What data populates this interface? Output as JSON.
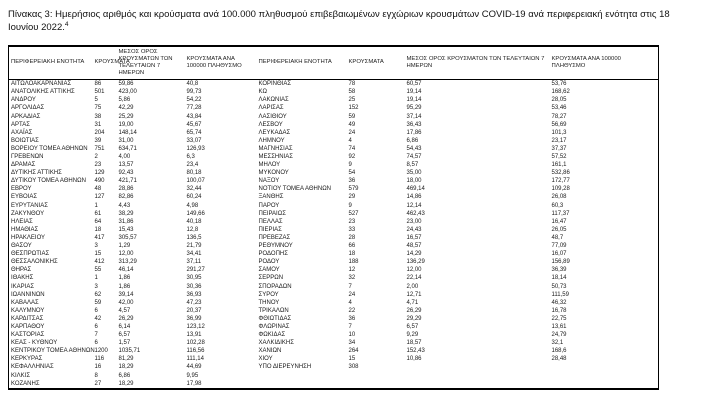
{
  "page": {
    "title": "Πίνακας 3:  Ημερήσιος αριθμός και κρούσματα ανά 100.000 πληθυσμού επιβεβαιωμένων εγχώριων κρουσμάτων COVID-19 ανά περιφερειακή ενότητα στις 18 Ιουνίου 2022.",
    "footnote_marker": "4"
  },
  "table": {
    "headers": {
      "region": "ΠΕΡΙΦΕΡΕΙΑΚΗ ΕΝΟΤΗΤΑ",
      "cases": "ΚΡΟΥΣΜΑΤΑ",
      "avg7": "ΜΕΣΟΣ ΟΡΟΣ ΚΡΟΥΣΜΑΤΩΝ ΤΩΝ ΤΕΛΕΥΤΑΙΩΝ 7 ΗΜΕΡΩΝ",
      "per100k": "ΚΡΟΥΣΜΑΤΑ ΑΝΑ 100000 ΠΛΗΘΥΣΜΟ"
    },
    "left_rows": [
      {
        "region": "ΑΙΤΩΛΟΑΚΑΡΝΑΝΙΑΣ",
        "cases": "86",
        "avg7": "59,86",
        "per100k": "40,8"
      },
      {
        "region": "ΑΝΑΤΟΛΙΚΗΣ ΑΤΤΙΚΗΣ",
        "cases": "501",
        "avg7": "423,00",
        "per100k": "99,73"
      },
      {
        "region": "ΑΝΔΡΟΥ",
        "cases": "5",
        "avg7": "5,86",
        "per100k": "54,22"
      },
      {
        "region": "ΑΡΓΟΛΙΔΑΣ",
        "cases": "75",
        "avg7": "42,29",
        "per100k": "77,28"
      },
      {
        "region": "ΑΡΚΑΔΙΑΣ",
        "cases": "38",
        "avg7": "25,29",
        "per100k": "43,84"
      },
      {
        "region": "ΑΡΤΑΣ",
        "cases": "31",
        "avg7": "19,00",
        "per100k": "45,67"
      },
      {
        "region": "ΑΧΑΪΑΣ",
        "cases": "204",
        "avg7": "148,14",
        "per100k": "65,74"
      },
      {
        "region": "ΒΟΙΩΤΙΑΣ",
        "cases": "39",
        "avg7": "31,00",
        "per100k": "33,07"
      },
      {
        "region": "ΒΟΡΕΙΟΥ ΤΟΜΕΑ ΑΘΗΝΩΝ",
        "cases": "751",
        "avg7": "634,71",
        "per100k": "126,93"
      },
      {
        "region": "ΓΡΕΒΕΝΩΝ",
        "cases": "2",
        "avg7": "4,00",
        "per100k": "6,3"
      },
      {
        "region": "ΔΡΑΜΑΣ",
        "cases": "23",
        "avg7": "13,57",
        "per100k": "23,4"
      },
      {
        "region": "ΔΥΤΙΚΗΣ ΑΤΤΙΚΗΣ",
        "cases": "129",
        "avg7": "92,43",
        "per100k": "80,18"
      },
      {
        "region": "ΔΥΤΙΚΟΥ ΤΟΜΕΑ ΑΘΗΝΩΝ",
        "cases": "490",
        "avg7": "421,71",
        "per100k": "100,07"
      },
      {
        "region": "ΕΒΡΟΥ",
        "cases": "48",
        "avg7": "28,86",
        "per100k": "32,44"
      },
      {
        "region": "ΕΥΒΟΙΑΣ",
        "cases": "127",
        "avg7": "82,86",
        "per100k": "60,24"
      },
      {
        "region": "ΕΥΡΥΤΑΝΙΑΣ",
        "cases": "1",
        "avg7": "4,43",
        "per100k": "4,98"
      },
      {
        "region": "ΖΑΚΥΝΘΟΥ",
        "cases": "61",
        "avg7": "38,29",
        "per100k": "149,66"
      },
      {
        "region": "ΗΛΕΙΑΣ",
        "cases": "64",
        "avg7": "31,86",
        "per100k": "40,18"
      },
      {
        "region": "ΗΜΑΘΙΑΣ",
        "cases": "18",
        "avg7": "15,43",
        "per100k": "12,8"
      },
      {
        "region": "ΗΡΑΚΛΕΙΟΥ",
        "cases": "417",
        "avg7": "305,57",
        "per100k": "136,5"
      },
      {
        "region": "ΘΑΣΟΥ",
        "cases": "3",
        "avg7": "1,29",
        "per100k": "21,79"
      },
      {
        "region": "ΘΕΣΠΡΩΤΙΑΣ",
        "cases": "15",
        "avg7": "12,00",
        "per100k": "34,41"
      },
      {
        "region": "ΘΕΣΣΑΛΟΝΙΚΗΣ",
        "cases": "412",
        "avg7": "313,29",
        "per100k": "37,11"
      },
      {
        "region": "ΘΗΡΑΣ",
        "cases": "55",
        "avg7": "46,14",
        "per100k": "291,27"
      },
      {
        "region": "ΙΘΑΚΗΣ",
        "cases": "1",
        "avg7": "1,86",
        "per100k": "30,95"
      },
      {
        "region": "ΙΚΑΡΙΑΣ",
        "cases": "3",
        "avg7": "1,86",
        "per100k": "30,36"
      },
      {
        "region": "ΙΩΑΝΝΙΝΩΝ",
        "cases": "62",
        "avg7": "39,14",
        "per100k": "36,93"
      },
      {
        "region": "ΚΑΒΑΛΑΣ",
        "cases": "59",
        "avg7": "42,00",
        "per100k": "47,23"
      },
      {
        "region": "ΚΑΛΥΜΝΟΥ",
        "cases": "6",
        "avg7": "4,57",
        "per100k": "20,37"
      },
      {
        "region": "ΚΑΡΔΙΤΣΑΣ",
        "cases": "42",
        "avg7": "26,29",
        "per100k": "36,99"
      },
      {
        "region": "ΚΑΡΠΑΘΟΥ",
        "cases": "6",
        "avg7": "6,14",
        "per100k": "123,12"
      },
      {
        "region": "ΚΑΣΤΟΡΙΑΣ",
        "cases": "7",
        "avg7": "6,57",
        "per100k": "13,91"
      },
      {
        "region": "ΚΕΑΣ - ΚΥΘΝΟΥ",
        "cases": "6",
        "avg7": "1,57",
        "per100k": "102,28"
      },
      {
        "region": "ΚΕΝΤΡΙΚΟΥ ΤΟΜΕΑ ΑΘΗΝΩΝ",
        "cases": "1200",
        "avg7": "1035,71",
        "per100k": "116,56"
      },
      {
        "region": "ΚΕΡΚΥΡΑΣ",
        "cases": "116",
        "avg7": "81,29",
        "per100k": "111,14"
      },
      {
        "region": "ΚΕΦΑΛΛΗΝΙΑΣ",
        "cases": "16",
        "avg7": "18,29",
        "per100k": "44,69"
      },
      {
        "region": "ΚΙΛΚΙΣ",
        "cases": "8",
        "avg7": "6,86",
        "per100k": "9,95"
      },
      {
        "region": "ΚΟΖΑΝΗΣ",
        "cases": "27",
        "avg7": "18,29",
        "per100k": "17,98"
      }
    ],
    "right_rows": [
      {
        "region": "ΚΟΡΙΝΘΙΑΣ",
        "cases": "78",
        "avg7": "60,57",
        "per100k": "53,76"
      },
      {
        "region": "ΚΩ",
        "cases": "58",
        "avg7": "19,14",
        "per100k": "168,62"
      },
      {
        "region": "ΛΑΚΩΝΙΑΣ",
        "cases": "25",
        "avg7": "19,14",
        "per100k": "28,05"
      },
      {
        "region": "ΛΑΡΙΣΑΣ",
        "cases": "152",
        "avg7": "95,29",
        "per100k": "53,46"
      },
      {
        "region": "ΛΑΣΙΘΙΟΥ",
        "cases": "59",
        "avg7": "37,14",
        "per100k": "78,27"
      },
      {
        "region": "ΛΕΣΒΟΥ",
        "cases": "49",
        "avg7": "36,43",
        "per100k": "56,69"
      },
      {
        "region": "ΛΕΥΚΑΔΑΣ",
        "cases": "24",
        "avg7": "17,86",
        "per100k": "101,3"
      },
      {
        "region": "ΛΗΜΝΟΥ",
        "cases": "4",
        "avg7": "6,86",
        "per100k": "23,17"
      },
      {
        "region": "ΜΑΓΝΗΣΙΑΣ",
        "cases": "74",
        "avg7": "54,43",
        "per100k": "37,37"
      },
      {
        "region": "ΜΕΣΣΗΝΙΑΣ",
        "cases": "92",
        "avg7": "74,57",
        "per100k": "57,52"
      },
      {
        "region": "ΜΗΛΟΥ",
        "cases": "9",
        "avg7": "8,57",
        "per100k": "161,1"
      },
      {
        "region": "ΜΥΚΟΝΟΥ",
        "cases": "54",
        "avg7": "35,00",
        "per100k": "532,86"
      },
      {
        "region": "ΝΑΞΟΥ",
        "cases": "36",
        "avg7": "18,00",
        "per100k": "172,77"
      },
      {
        "region": "ΝΟΤΙΟΥ ΤΟΜΕΑ ΑΘΗΝΩΝ",
        "cases": "579",
        "avg7": "469,14",
        "per100k": "109,28"
      },
      {
        "region": "ΞΑΝΘΗΣ",
        "cases": "29",
        "avg7": "14,86",
        "per100k": "26,08"
      },
      {
        "region": "ΠΑΡΟΥ",
        "cases": "9",
        "avg7": "12,14",
        "per100k": "60,3"
      },
      {
        "region": "ΠΕΙΡΑΙΩΣ",
        "cases": "527",
        "avg7": "462,43",
        "per100k": "117,37"
      },
      {
        "region": "ΠΕΛΛΑΣ",
        "cases": "23",
        "avg7": "23,00",
        "per100k": "16,47"
      },
      {
        "region": "ΠΙΕΡΙΑΣ",
        "cases": "33",
        "avg7": "24,43",
        "per100k": "26,05"
      },
      {
        "region": "ΠΡΕΒΕΖΑΣ",
        "cases": "28",
        "avg7": "16,57",
        "per100k": "48,7"
      },
      {
        "region": "ΡΕΘΥΜΝΟΥ",
        "cases": "66",
        "avg7": "48,57",
        "per100k": "77,09"
      },
      {
        "region": "ΡΟΔΟΠΗΣ",
        "cases": "18",
        "avg7": "14,29",
        "per100k": "16,07"
      },
      {
        "region": "ΡΟΔΟΥ",
        "cases": "188",
        "avg7": "136,29",
        "per100k": "156,89"
      },
      {
        "region": "ΣΑΜΟΥ",
        "cases": "12",
        "avg7": "12,00",
        "per100k": "36,39"
      },
      {
        "region": "ΣΕΡΡΩΝ",
        "cases": "32",
        "avg7": "22,14",
        "per100k": "18,14"
      },
      {
        "region": "ΣΠΟΡΑΔΩΝ",
        "cases": "7",
        "avg7": "2,00",
        "per100k": "50,73"
      },
      {
        "region": "ΣΥΡΟΥ",
        "cases": "24",
        "avg7": "12,71",
        "per100k": "111,59"
      },
      {
        "region": "ΤΗΝΟΥ",
        "cases": "4",
        "avg7": "4,71",
        "per100k": "46,32"
      },
      {
        "region": "ΤΡΙΚΑΛΩΝ",
        "cases": "22",
        "avg7": "26,29",
        "per100k": "16,78"
      },
      {
        "region": "ΦΘΙΩΤΙΔΑΣ",
        "cases": "36",
        "avg7": "29,29",
        "per100k": "22,75"
      },
      {
        "region": "ΦΛΩΡΙΝΑΣ",
        "cases": "7",
        "avg7": "6,57",
        "per100k": "13,61"
      },
      {
        "region": "ΦΩΚΙΔΑΣ",
        "cases": "10",
        "avg7": "9,29",
        "per100k": "24,79"
      },
      {
        "region": "ΧΑΛΚΙΔΙΚΗΣ",
        "cases": "34",
        "avg7": "18,57",
        "per100k": "32,1"
      },
      {
        "region": "ΧΑΝΙΩΝ",
        "cases": "264",
        "avg7": "152,43",
        "per100k": "168,6"
      },
      {
        "region": "ΧΙΟΥ",
        "cases": "15",
        "avg7": "10,86",
        "per100k": "28,48"
      },
      {
        "region": "ΥΠΟ ΔΙΕΡΕΥΝΗΣΗ",
        "cases": "308",
        "avg7": "",
        "per100k": ""
      }
    ]
  }
}
